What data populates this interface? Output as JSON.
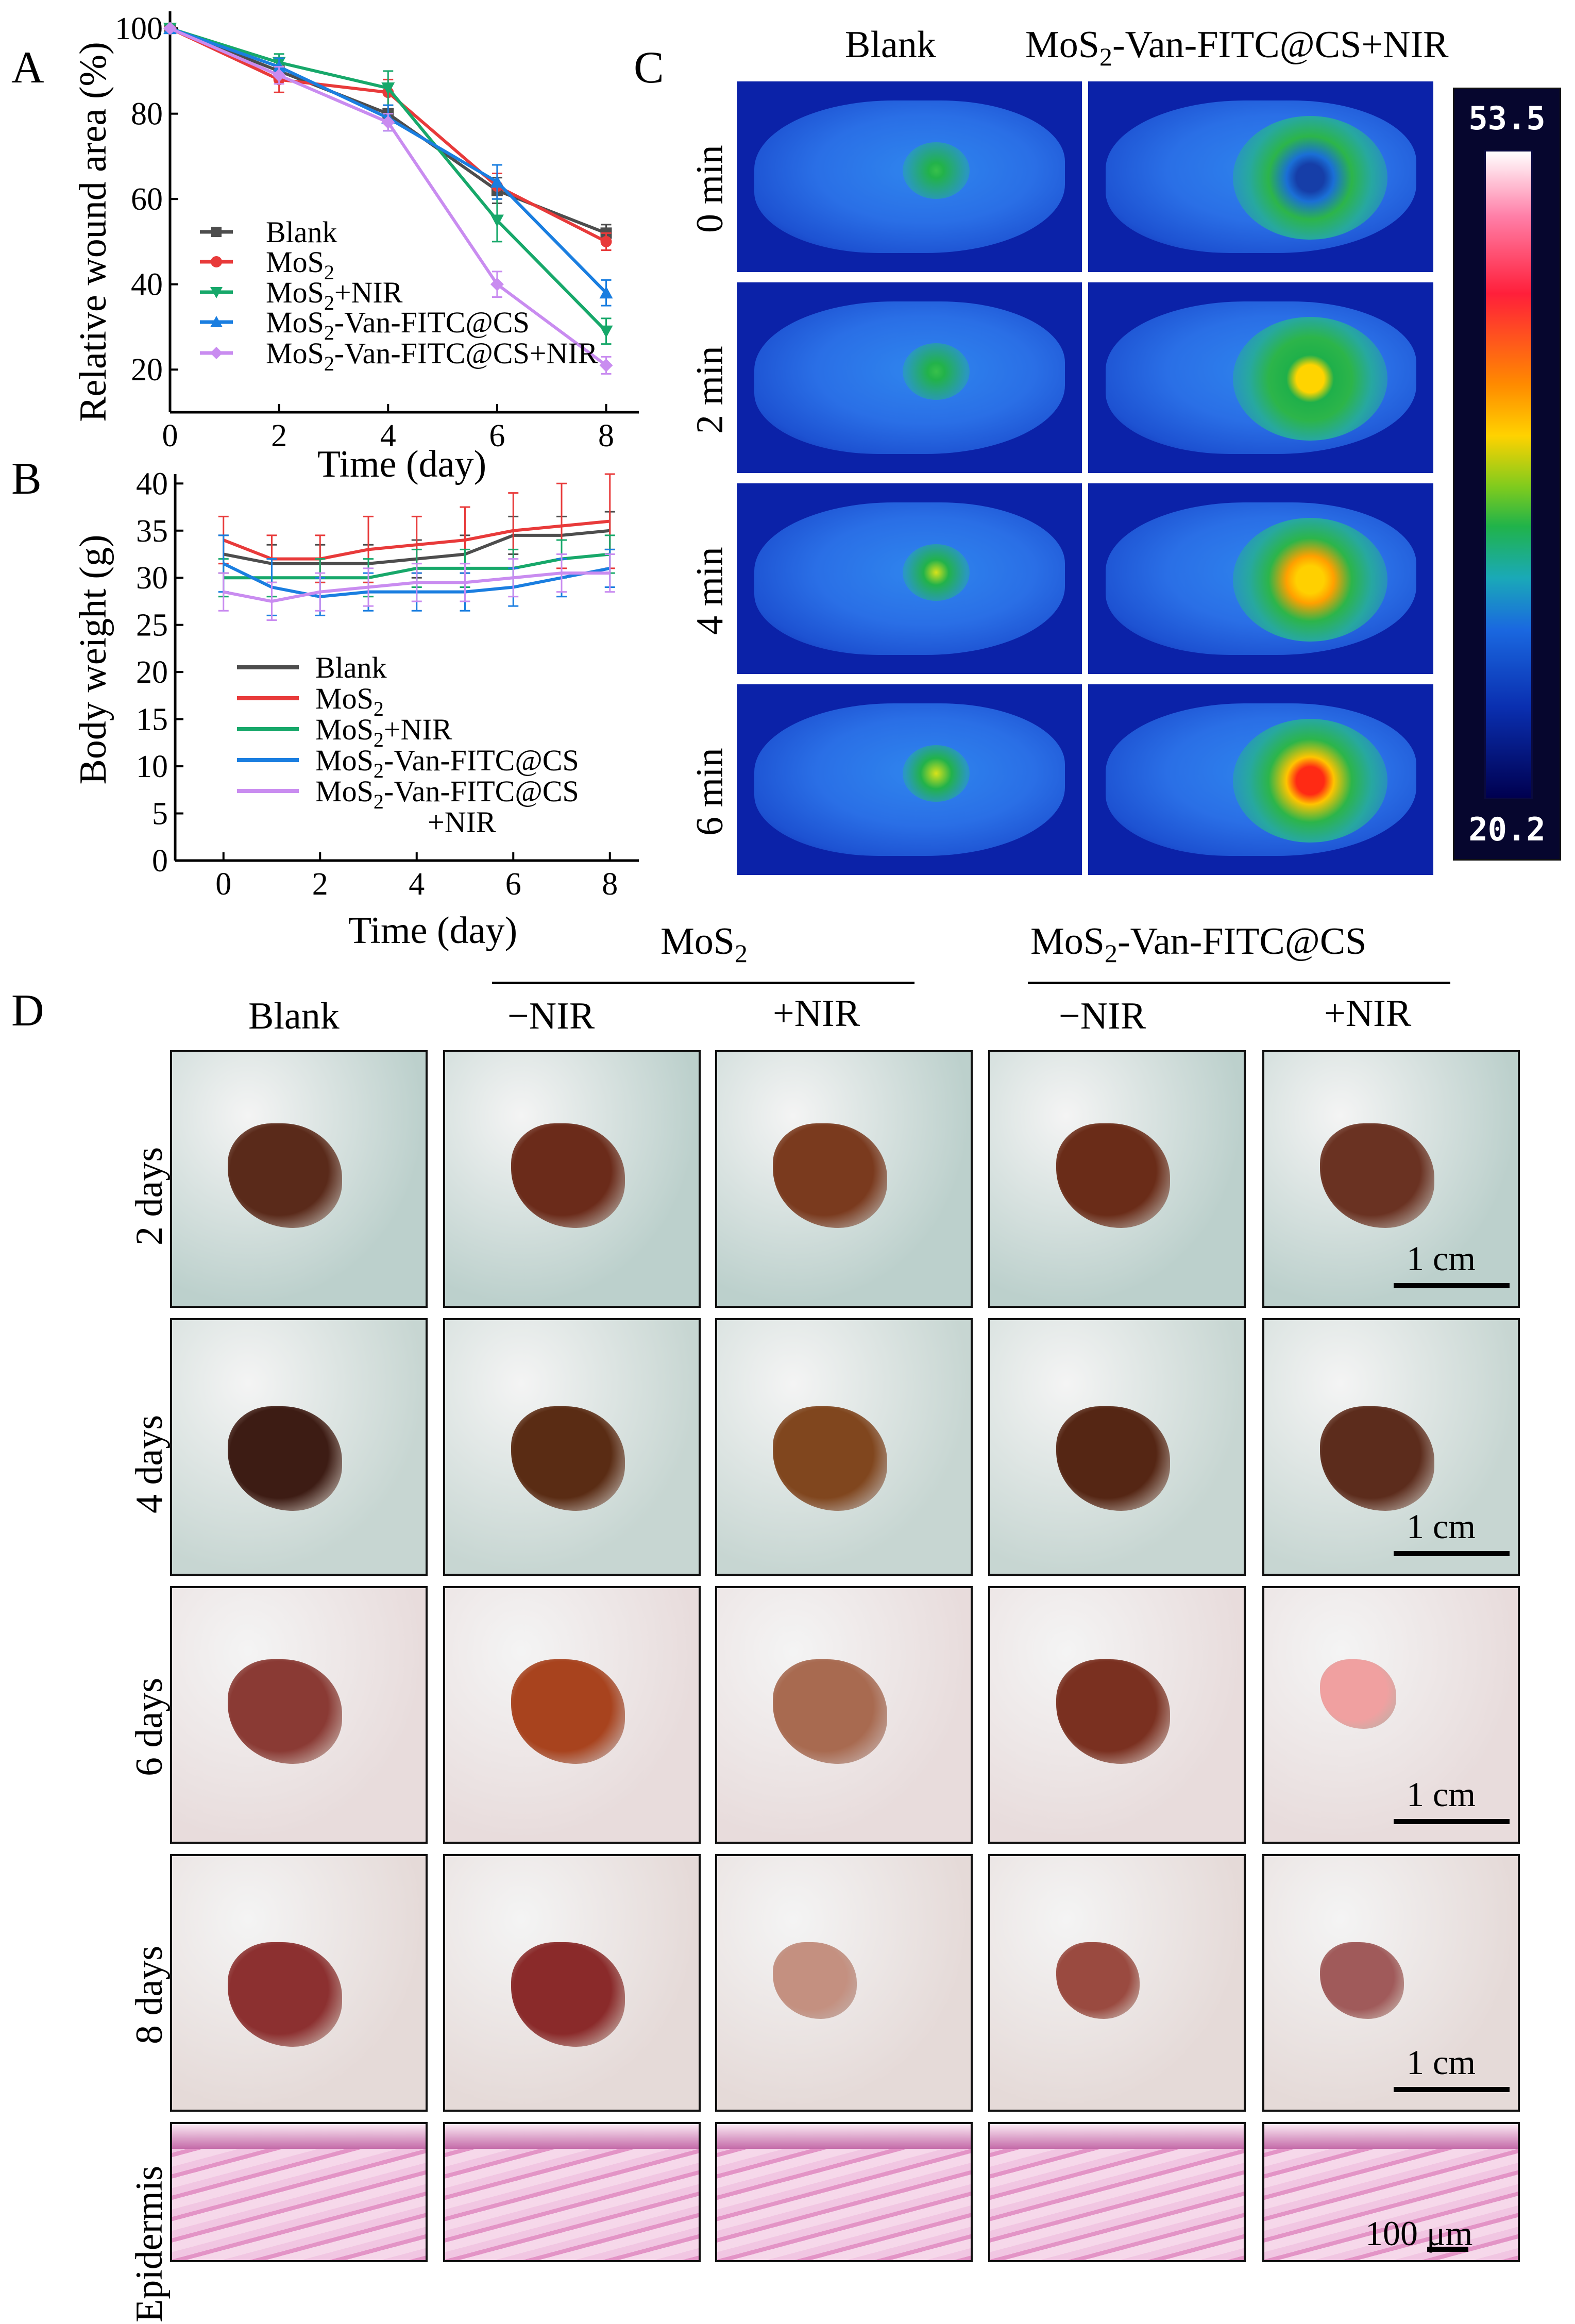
{
  "panel_labels": {
    "a": "A",
    "b": "B",
    "c": "C",
    "d": "D"
  },
  "chart_data": [
    {
      "type": "line",
      "panel": "A",
      "xlabel": "Time (day)",
      "ylabel": "Relative wound area (%)",
      "xlim": [
        0,
        8.6
      ],
      "ylim": [
        10,
        104
      ],
      "xticks": [
        0,
        2,
        4,
        6,
        8
      ],
      "yticks": [
        20,
        40,
        60,
        80,
        100
      ],
      "x": [
        0,
        2,
        4,
        6,
        8
      ],
      "series": [
        {
          "name": "Blank",
          "color": "#4d4d4d",
          "marker": "square",
          "values": [
            100,
            90,
            80,
            62,
            52
          ],
          "errors": [
            0,
            2,
            2,
            3,
            2
          ]
        },
        {
          "name": "MoS2",
          "color": "#e83a3a",
          "marker": "circle",
          "values": [
            100,
            88,
            85,
            63,
            50
          ],
          "errors": [
            0,
            3,
            3,
            3,
            2
          ]
        },
        {
          "name": "MoS2+NIR",
          "color": "#17a86a",
          "marker": "tri-down",
          "values": [
            100,
            92,
            86,
            55,
            29
          ],
          "errors": [
            0,
            2,
            4,
            5,
            3
          ]
        },
        {
          "name": "MoS2-Van-FITC@CS",
          "color": "#1a7ee0",
          "marker": "tri-up",
          "values": [
            100,
            91,
            79,
            64,
            38
          ],
          "errors": [
            0,
            2,
            3,
            4,
            3
          ]
        },
        {
          "name": "MoS2-Van-FITC@CS+NIR",
          "color": "#c98cf0",
          "marker": "diamond",
          "values": [
            100,
            89,
            78,
            40,
            21
          ],
          "errors": [
            0,
            2,
            2,
            3,
            2
          ]
        }
      ]
    },
    {
      "type": "line",
      "panel": "B",
      "xlabel": "Time (day)",
      "ylabel": "Body weight (g)",
      "xlim": [
        -1,
        8.6
      ],
      "ylim": [
        0,
        41
      ],
      "xticks": [
        0,
        2,
        4,
        6,
        8
      ],
      "yticks": [
        0,
        5,
        10,
        15,
        20,
        25,
        30,
        35,
        40
      ],
      "x": [
        0,
        1,
        2,
        3,
        4,
        5,
        6,
        7,
        8
      ],
      "series": [
        {
          "name": "Blank",
          "color": "#4d4d4d",
          "values": [
            32.5,
            31.5,
            31.5,
            31.5,
            32,
            32.5,
            34.5,
            34.5,
            35
          ],
          "errors": [
            2,
            2,
            2,
            2,
            2,
            2,
            2,
            2,
            2
          ]
        },
        {
          "name": "MoS2",
          "color": "#e83a3a",
          "values": [
            34,
            32,
            32,
            33,
            33.5,
            34,
            35,
            35.5,
            36
          ],
          "errors": [
            2.5,
            2.5,
            2.5,
            3.5,
            3,
            3.5,
            4,
            4.5,
            5
          ]
        },
        {
          "name": "MoS2+NIR",
          "color": "#17a86a",
          "values": [
            30,
            30,
            30,
            30,
            31,
            31,
            31,
            32,
            32.5
          ],
          "errors": [
            2,
            2,
            2,
            2,
            2,
            2,
            2,
            2,
            2
          ]
        },
        {
          "name": "MoS2-Van-FITC@CS",
          "color": "#1a7ee0",
          "values": [
            31.5,
            29,
            28,
            28.5,
            28.5,
            28.5,
            29,
            30,
            31
          ],
          "errors": [
            3,
            3,
            2,
            2,
            2,
            2,
            2,
            2,
            2
          ]
        },
        {
          "name": "MoS2-Van-FITC@CS+NIR",
          "color": "#c98cf0",
          "values": [
            28.5,
            27.5,
            28.5,
            29,
            29.5,
            29.5,
            30,
            30.5,
            30.5
          ],
          "errors": [
            2,
            2,
            2,
            2,
            2,
            2,
            2,
            2,
            2
          ]
        }
      ]
    }
  ],
  "legend": {
    "blank": "Blank",
    "mos2_base": "MoS",
    "sub2": "2",
    "nir": "+NIR",
    "van_suffix": "-Van-FITC@CS",
    "van_nir_suffix": "-Van-FITC@CS+NIR",
    "nir_wrap": "+NIR"
  },
  "thermal": {
    "col_blank": "Blank",
    "col_treat_base": "MoS",
    "col_treat_sub": "2",
    "col_treat_rest": "-Van-FITC@CS+NIR",
    "rows": [
      "0 min",
      "2 min",
      "4 min",
      "6 min"
    ],
    "scale_max": "53.5",
    "scale_min": "20.2",
    "hotspot": [
      0.15,
      0.25,
      0.7,
      1.0
    ]
  },
  "wound": {
    "col_blank": "Blank",
    "group1_base": "MoS",
    "group1_sub": "2",
    "group2_base": "MoS",
    "group2_sub": "2",
    "group2_rest": "-Van-FITC@CS",
    "minus_nir": "−NIR",
    "plus_nir": "+NIR",
    "rows": [
      "2 days",
      "4 days",
      "6 days",
      "8 days"
    ],
    "histology_row": "Epidermis",
    "scale_cm": "1 cm",
    "scale_um": "100 μm"
  }
}
